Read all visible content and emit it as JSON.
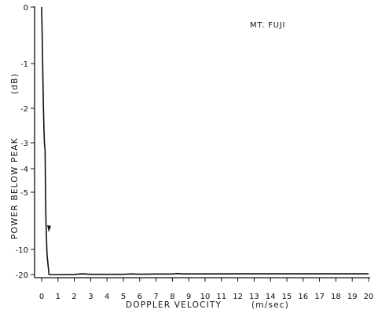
{
  "chart_data": {
    "type": "line",
    "annotation": "MT. FUJI",
    "xlabel": "DOPPLER VELOCITY",
    "xunit": "(m/sec)",
    "ylabel": "POWER BELOW PEAK",
    "yunit": "(dB)",
    "xlim": [
      0,
      20
    ],
    "x_ticks": [
      0,
      1,
      2,
      3,
      4,
      5,
      6,
      7,
      8,
      9,
      10,
      11,
      12,
      13,
      14,
      15,
      16,
      17,
      18,
      19,
      20
    ],
    "y_ticks": [
      0,
      -1,
      -2,
      -3,
      -4,
      -5,
      -10,
      -20
    ],
    "y_tick_labels": [
      "0",
      "-1",
      "-2",
      "-3",
      "-4",
      "-5",
      "-10",
      "-20"
    ],
    "grid": false,
    "series": [
      {
        "x": [
          0.0,
          0.0,
          0.02,
          0.05,
          0.08,
          0.11,
          0.14,
          0.17,
          0.21,
          0.24,
          0.27,
          0.33,
          0.45,
          1.0,
          2.0,
          2.5,
          3.0,
          4.0,
          5.0,
          5.5,
          6.0,
          7.0,
          8.0,
          8.3,
          8.6,
          10.0,
          12.0,
          14.0,
          16.0,
          18.0,
          20.0
        ],
        "y": [
          0.0,
          -0.05,
          -0.3,
          -0.8,
          -1.4,
          -2.0,
          -2.6,
          -3.0,
          -3.3,
          -5.5,
          -8.0,
          -12.0,
          -20.0,
          -20.0,
          -19.95,
          -19.7,
          -19.9,
          -19.9,
          -19.9,
          -19.75,
          -19.85,
          -19.8,
          -19.8,
          -19.6,
          -19.75,
          -19.75,
          -19.7,
          -19.7,
          -19.7,
          -19.7,
          -19.7
        ]
      }
    ]
  }
}
